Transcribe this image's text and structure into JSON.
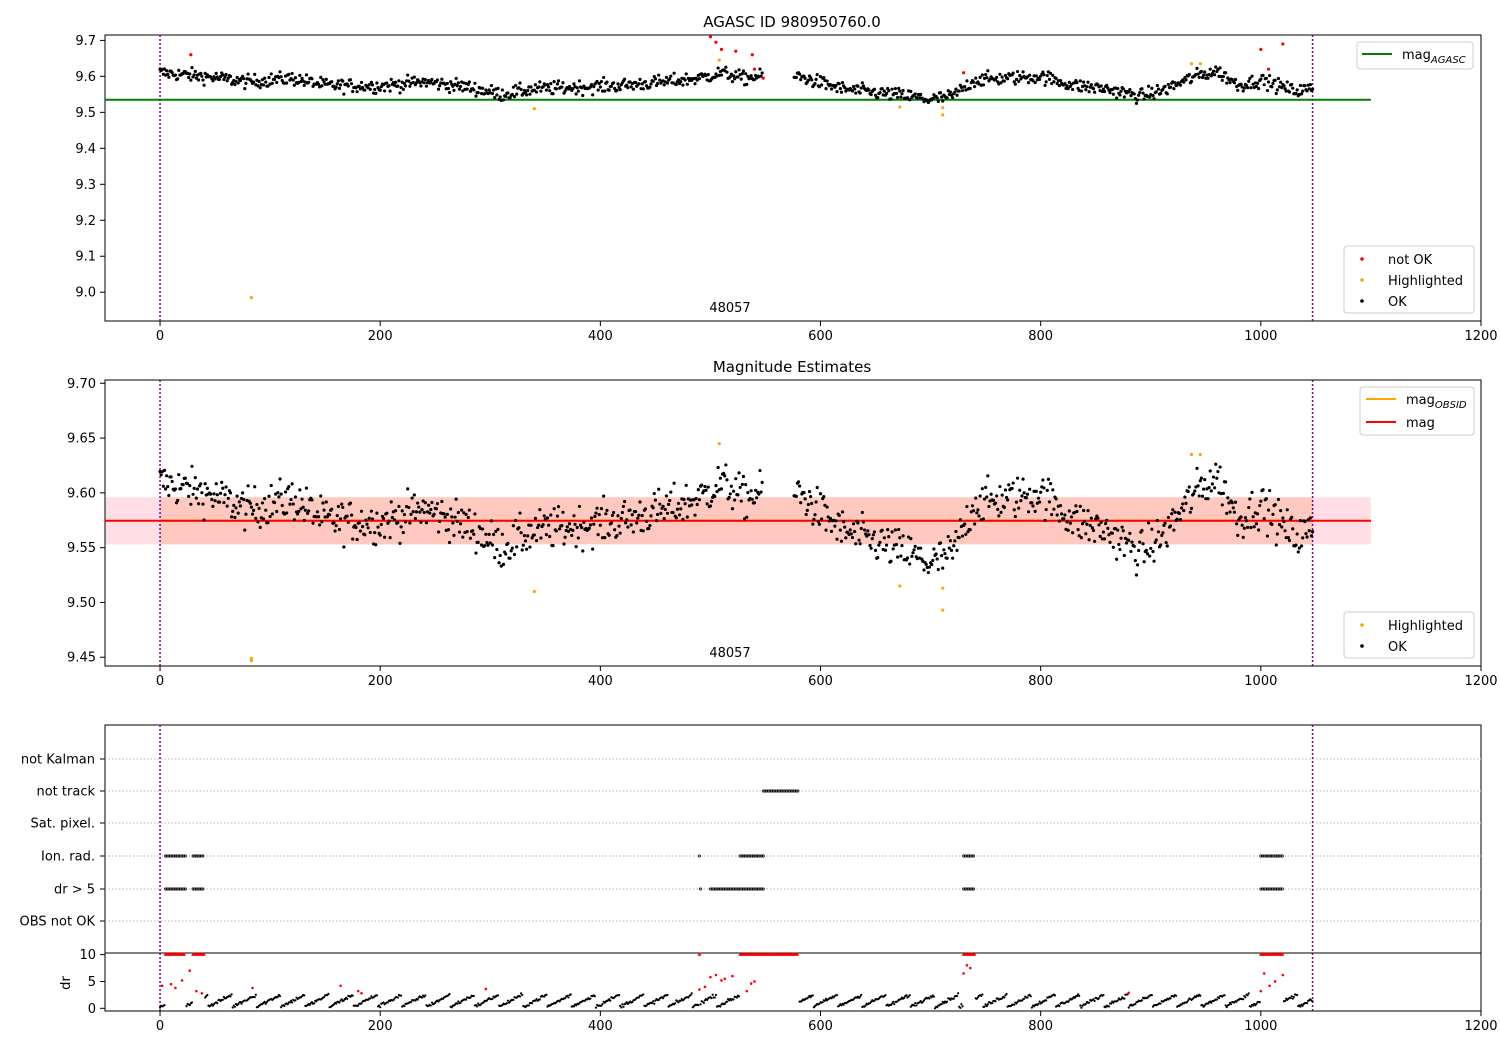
{
  "chart_data": [
    {
      "type": "scatter",
      "title": "AGASC ID 980950760.0",
      "annotation": "48057",
      "xlim": [
        -50,
        1200
      ],
      "ylim": [
        8.92,
        9.715
      ],
      "xticks": [
        0,
        200,
        400,
        600,
        800,
        1000,
        1200
      ],
      "yticks": [
        9.0,
        9.1,
        9.2,
        9.3,
        9.4,
        9.5,
        9.6,
        9.7
      ],
      "ytick_labels": [
        "9.0",
        "9.1",
        "9.2",
        "9.3",
        "9.4",
        "9.5",
        "9.6",
        "9.7"
      ],
      "vlines": [
        0,
        1047
      ],
      "reference_line": {
        "label_main": "mag",
        "label_sub": "AGASC",
        "y": 9.535,
        "x": [
          -50,
          1100
        ],
        "color": "#008000"
      },
      "legend_markers": [
        {
          "label": "not OK",
          "color": "#ff0000"
        },
        {
          "label": "Highlighted",
          "color": "#ffa500"
        },
        {
          "label": "OK",
          "color": "#000000"
        }
      ],
      "baseline": [
        [
          0,
          9.61
        ],
        [
          40,
          9.6
        ],
        [
          80,
          9.585
        ],
        [
          120,
          9.595
        ],
        [
          150,
          9.575
        ],
        [
          200,
          9.573
        ],
        [
          240,
          9.585
        ],
        [
          280,
          9.57
        ],
        [
          310,
          9.55
        ],
        [
          340,
          9.565
        ],
        [
          380,
          9.57
        ],
        [
          420,
          9.575
        ],
        [
          460,
          9.585
        ],
        [
          490,
          9.595
        ],
        [
          510,
          9.61
        ],
        [
          530,
          9.595
        ],
        [
          545,
          9.6
        ],
        [
          580,
          9.6
        ],
        [
          620,
          9.565
        ],
        [
          650,
          9.555
        ],
        [
          680,
          9.545
        ],
        [
          700,
          9.535
        ],
        [
          720,
          9.545
        ],
        [
          740,
          9.59
        ],
        [
          770,
          9.595
        ],
        [
          800,
          9.6
        ],
        [
          830,
          9.575
        ],
        [
          860,
          9.565
        ],
        [
          890,
          9.545
        ],
        [
          910,
          9.56
        ],
        [
          940,
          9.6
        ],
        [
          960,
          9.615
        ],
        [
          980,
          9.575
        ],
        [
          1000,
          9.59
        ],
        [
          1030,
          9.56
        ],
        [
          1047,
          9.565
        ]
      ],
      "gaps": [
        [
          548,
          575
        ]
      ],
      "noise": 0.017,
      "not_ok_points": [
        [
          28,
          9.66
        ],
        [
          500,
          9.71
        ],
        [
          505,
          9.695
        ],
        [
          510,
          9.675
        ],
        [
          523,
          9.67
        ],
        [
          538,
          9.66
        ],
        [
          540,
          9.62
        ],
        [
          548,
          9.595
        ],
        [
          730,
          9.61
        ],
        [
          1000,
          9.675
        ],
        [
          1007,
          9.62
        ],
        [
          1020,
          9.69
        ]
      ],
      "highlighted_points": [
        [
          83,
          8.985
        ],
        [
          340,
          9.51
        ],
        [
          508,
          9.645
        ],
        [
          672,
          9.515
        ],
        [
          711,
          9.493
        ],
        [
          711,
          9.513
        ],
        [
          937,
          9.635
        ],
        [
          945,
          9.635
        ]
      ]
    },
    {
      "type": "scatter",
      "title": "Magnitude Estimates",
      "annotation": "48057",
      "xlim": [
        -50,
        1200
      ],
      "ylim": [
        9.442,
        9.703
      ],
      "xticks": [
        0,
        200,
        400,
        600,
        800,
        1000,
        1200
      ],
      "yticks": [
        9.45,
        9.5,
        9.55,
        9.6,
        9.65,
        9.7
      ],
      "ytick_labels": [
        "9.45",
        "9.50",
        "9.55",
        "9.60",
        "9.65",
        "9.70"
      ],
      "vlines": [
        0,
        1047
      ],
      "mag_obsid": {
        "label_main": "mag",
        "label_sub": "OBSID",
        "y": 9.5745,
        "band": [
          9.553,
          9.596
        ],
        "x": [
          -50,
          1100
        ],
        "color": "#ffa500"
      },
      "mag": {
        "label": "mag",
        "y": 9.5745,
        "band": [
          9.553,
          9.596
        ],
        "x": [
          -50,
          1100
        ],
        "color": "#ff0000"
      },
      "legend_markers": [
        {
          "label": "Highlighted",
          "color": "#ffa500"
        },
        {
          "label": "OK",
          "color": "#000000"
        }
      ],
      "highlighted_points": [
        [
          83,
          9.447
        ],
        [
          83,
          9.449
        ],
        [
          340,
          9.51
        ],
        [
          508,
          9.645
        ],
        [
          672,
          9.515
        ],
        [
          711,
          9.493
        ],
        [
          711,
          9.513
        ],
        [
          937,
          9.635
        ],
        [
          945,
          9.635
        ]
      ]
    },
    {
      "type": "scatter",
      "ylabel": "dr",
      "xlim": [
        -50,
        1200
      ],
      "xticks": [
        0,
        200,
        400,
        600,
        800,
        1000,
        1200
      ],
      "vlines": [
        0,
        1047
      ],
      "flag_rows": [
        "not Kalman",
        "not track",
        "Sat. pixel.",
        "Ion. rad.",
        "dr > 5",
        "OBS not OK"
      ],
      "flag_ranges": {
        "not track": [
          [
            548,
            580
          ]
        ],
        "Ion. rad.": [
          [
            5,
            23
          ],
          [
            30,
            40
          ],
          [
            490,
            490
          ],
          [
            527,
            548
          ],
          [
            730,
            740
          ],
          [
            1000,
            1020
          ]
        ],
        "dr > 5": [
          [
            5,
            23
          ],
          [
            30,
            40
          ],
          [
            491,
            491
          ],
          [
            500,
            548
          ],
          [
            730,
            740
          ],
          [
            1000,
            1020
          ]
        ]
      },
      "dr_ylim": [
        -0.5,
        10.3
      ],
      "dr_yticks": [
        0,
        5,
        10
      ],
      "dr_threshold": 5,
      "dr_capped_ranges": [
        [
          5,
          23
        ],
        [
          30,
          40
        ],
        [
          490,
          490
        ],
        [
          527,
          580
        ],
        [
          730,
          740
        ],
        [
          1000,
          1020
        ]
      ],
      "dr_red_points": [
        [
          2,
          4.2
        ],
        [
          10,
          4.5
        ],
        [
          14,
          3.8
        ],
        [
          20,
          5.2
        ],
        [
          27,
          7
        ],
        [
          33,
          3.2
        ],
        [
          38,
          2.8
        ],
        [
          84,
          3.8
        ],
        [
          164,
          4.2
        ],
        [
          180,
          3.2
        ],
        [
          183,
          2.8
        ],
        [
          296,
          3.6
        ],
        [
          490,
          3.5
        ],
        [
          495,
          4
        ],
        [
          500,
          5.8
        ],
        [
          505,
          6.2
        ],
        [
          510,
          5.2
        ],
        [
          513,
          5.5
        ],
        [
          520,
          6
        ],
        [
          533,
          3.2
        ],
        [
          537,
          4.6
        ],
        [
          540,
          5
        ],
        [
          730,
          6.5
        ],
        [
          733,
          8
        ],
        [
          736,
          7.5
        ],
        [
          880,
          2.9
        ],
        [
          1000,
          3.2
        ],
        [
          1003,
          6.5
        ],
        [
          1008,
          4.2
        ],
        [
          1013,
          5
        ],
        [
          1020,
          6.2
        ]
      ]
    }
  ]
}
